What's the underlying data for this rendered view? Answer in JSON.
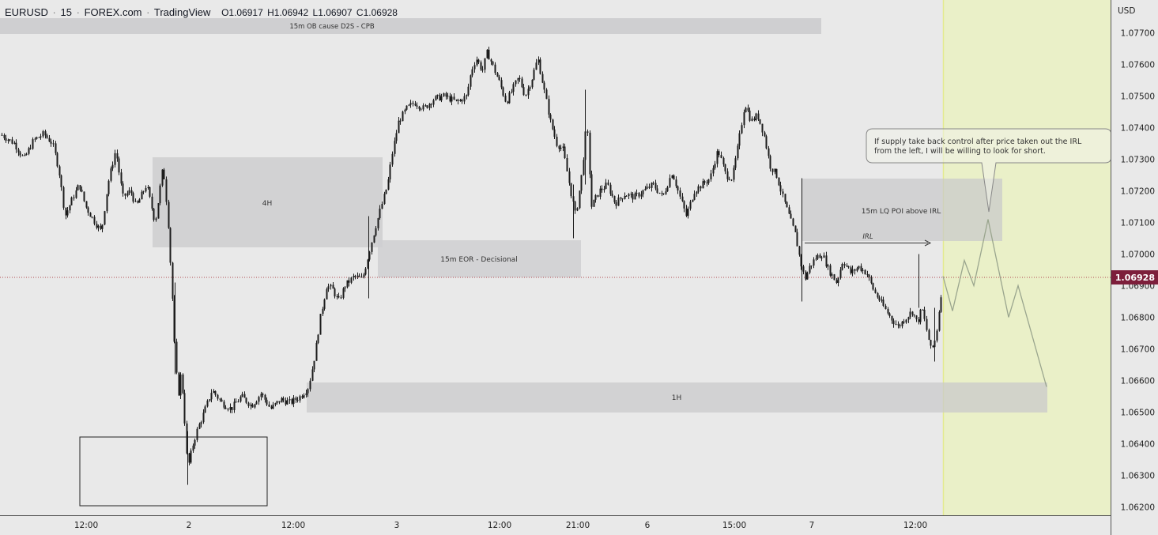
{
  "header": {
    "symbol": "EURUSD",
    "interval": "15",
    "exchange": "FOREX.com",
    "platform": "TradingView",
    "sep": "·",
    "open": "O1.06917",
    "high": "H1.06942",
    "low": "L1.06907",
    "close": "C1.06928"
  },
  "currency_label": "USD",
  "price_axis": {
    "ticks": [
      "1.07700",
      "1.07600",
      "1.07500",
      "1.07400",
      "1.07300",
      "1.07200",
      "1.07100",
      "1.07000",
      "1.06900",
      "1.06800",
      "1.06700",
      "1.06600",
      "1.06500",
      "1.06400",
      "1.06300",
      "1.06200"
    ],
    "current_price": "1.06928"
  },
  "time_axis": {
    "ticks": [
      "12:00",
      "2",
      "12:00",
      "3",
      "12:00",
      "21:00",
      "6",
      "15:00",
      "7",
      "12:00"
    ]
  },
  "colors": {
    "background": "#e9e9e9",
    "candle": "#1c1c1c",
    "zone": "#c9c9cb",
    "highlight": "#eaf0c8",
    "price_badge": "#7d1e3b",
    "price_line": "#b0494f",
    "projection": "#9aa58e"
  },
  "annotations": {
    "ob_zone": "15m OB cause D2S - CPB",
    "zone_4h": "4H",
    "eor_zone": "15m EOR - Decisional",
    "lq_zone": "15m LQ POI above IRL",
    "irl": "IRL",
    "zone_1h": "1H",
    "callout_line1": "If supply take back control after price taken out the IRL",
    "callout_line2": "from the left, I will be willing to look for short."
  },
  "chart_data": {
    "type": "candlestick",
    "symbol": "EURUSD",
    "timeframe": "15",
    "ylim": [
      1.0618,
      1.0782
    ],
    "path": [
      [
        0,
        1.0738
      ],
      [
        18,
        1.0735
      ],
      [
        30,
        1.073
      ],
      [
        42,
        1.0736
      ],
      [
        55,
        1.0738
      ],
      [
        66,
        1.0735
      ],
      [
        74,
        1.0727
      ],
      [
        82,
        1.0712
      ],
      [
        92,
        1.0718
      ],
      [
        100,
        1.0722
      ],
      [
        108,
        1.0715
      ],
      [
        120,
        1.071
      ],
      [
        128,
        1.0707
      ],
      [
        136,
        1.0722
      ],
      [
        146,
        1.0733
      ],
      [
        155,
        1.0718
      ],
      [
        165,
        1.072
      ],
      [
        172,
        1.0715
      ],
      [
        185,
        1.0722
      ],
      [
        196,
        1.071
      ],
      [
        206,
        1.0728
      ],
      [
        212,
        1.0712
      ],
      [
        218,
        1.0685
      ],
      [
        221,
        1.0668
      ],
      [
        225,
        1.0655
      ],
      [
        229,
        1.0663
      ],
      [
        234,
        1.0645
      ],
      [
        237,
        1.0632
      ],
      [
        244,
        1.064
      ],
      [
        250,
        1.0645
      ],
      [
        258,
        1.065
      ],
      [
        268,
        1.0657
      ],
      [
        280,
        1.0653
      ],
      [
        292,
        1.0651
      ],
      [
        305,
        1.0655
      ],
      [
        318,
        1.0652
      ],
      [
        330,
        1.0656
      ],
      [
        342,
        1.0651
      ],
      [
        355,
        1.0654
      ],
      [
        367,
        1.0653
      ],
      [
        380,
        1.0655
      ],
      [
        390,
        1.0658
      ],
      [
        398,
        1.0668
      ],
      [
        405,
        1.068
      ],
      [
        413,
        1.069
      ],
      [
        420,
        1.0689
      ],
      [
        428,
        1.0685
      ],
      [
        436,
        1.069
      ],
      [
        448,
        1.0693
      ],
      [
        458,
        1.0692
      ],
      [
        466,
        1.07
      ],
      [
        474,
        1.0708
      ],
      [
        482,
        1.0715
      ],
      [
        490,
        1.0722
      ],
      [
        496,
        1.0732
      ],
      [
        504,
        1.0742
      ],
      [
        514,
        1.0746
      ],
      [
        524,
        1.0748
      ],
      [
        536,
        1.0746
      ],
      [
        548,
        1.0749
      ],
      [
        562,
        1.075
      ],
      [
        578,
        1.0748
      ],
      [
        590,
        1.075
      ],
      [
        596,
        1.0758
      ],
      [
        602,
        1.0762
      ],
      [
        610,
        1.0758
      ],
      [
        616,
        1.0764
      ],
      [
        624,
        1.0759
      ],
      [
        632,
        1.0754
      ],
      [
        640,
        1.0748
      ],
      [
        648,
        1.0752
      ],
      [
        656,
        1.0756
      ],
      [
        664,
        1.075
      ],
      [
        672,
        1.0755
      ],
      [
        680,
        1.0762
      ],
      [
        688,
        1.0752
      ],
      [
        696,
        1.0742
      ],
      [
        704,
        1.0735
      ],
      [
        712,
        1.0733
      ],
      [
        720,
        1.0722
      ],
      [
        728,
        1.0712
      ],
      [
        736,
        1.0726
      ],
      [
        742,
        1.0742
      ],
      [
        748,
        1.0715
      ],
      [
        758,
        1.072
      ],
      [
        768,
        1.0722
      ],
      [
        778,
        1.0716
      ],
      [
        790,
        1.0719
      ],
      [
        802,
        1.0718
      ],
      [
        814,
        1.072
      ],
      [
        826,
        1.0722
      ],
      [
        838,
        1.0718
      ],
      [
        850,
        1.0726
      ],
      [
        860,
        1.0718
      ],
      [
        868,
        1.0712
      ],
      [
        878,
        1.072
      ],
      [
        888,
        1.0722
      ],
      [
        898,
        1.0724
      ],
      [
        908,
        1.0733
      ],
      [
        918,
        1.0725
      ],
      [
        926,
        1.0724
      ],
      [
        934,
        1.0735
      ],
      [
        942,
        1.0748
      ],
      [
        950,
        1.0742
      ],
      [
        958,
        1.0744
      ],
      [
        966,
        1.0738
      ],
      [
        974,
        1.0728
      ],
      [
        982,
        1.0725
      ],
      [
        990,
        1.0718
      ],
      [
        998,
        1.0712
      ],
      [
        1006,
        1.0706
      ],
      [
        1012,
        1.0698
      ],
      [
        1018,
        1.0692
      ],
      [
        1024,
        1.0696
      ],
      [
        1032,
        1.0699
      ],
      [
        1040,
        1.07
      ],
      [
        1048,
        1.0695
      ],
      [
        1058,
        1.0691
      ],
      [
        1066,
        1.0698
      ],
      [
        1076,
        1.0694
      ],
      [
        1086,
        1.0696
      ],
      [
        1096,
        1.0694
      ],
      [
        1106,
        1.0688
      ],
      [
        1116,
        1.0684
      ],
      [
        1126,
        1.068
      ],
      [
        1136,
        1.0677
      ],
      [
        1146,
        1.068
      ],
      [
        1154,
        1.0682
      ],
      [
        1160,
        1.0678
      ],
      [
        1166,
        1.0683
      ],
      [
        1172,
        1.0676
      ],
      [
        1178,
        1.0669
      ],
      [
        1184,
        1.0674
      ],
      [
        1188,
        1.0683
      ],
      [
        1193,
        1.0693
      ]
    ],
    "projection": [
      [
        1193,
        1.0693
      ],
      [
        1205,
        1.0682
      ],
      [
        1220,
        1.0698
      ],
      [
        1232,
        1.069
      ],
      [
        1250,
        1.0711
      ],
      [
        1276,
        1.068
      ],
      [
        1288,
        1.069
      ],
      [
        1324,
        1.0658
      ]
    ]
  }
}
